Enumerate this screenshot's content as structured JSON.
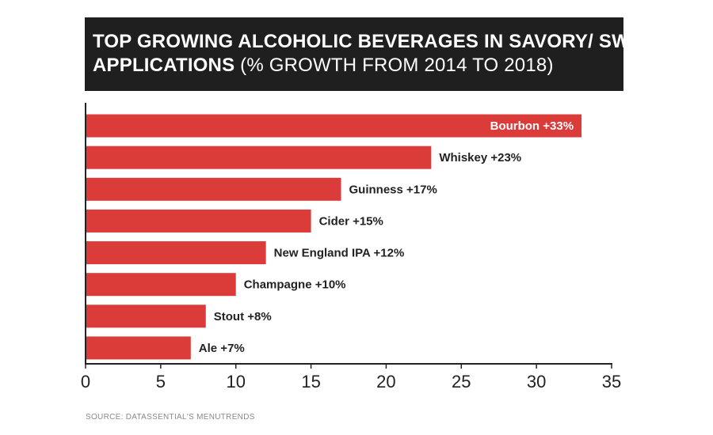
{
  "title": {
    "line1": "TOP GROWING ALCOHOLIC BEVERAGES IN SAVORY/ SWEET FOOD",
    "line2_bold": "APPLICATIONS",
    "line2_rest": " (% GROWTH FROM 2014 TO 2018)"
  },
  "source": "SOURCE: DATASSENTIAL'S MENUTRENDS",
  "colors": {
    "bar": "#db3b39",
    "title_bg": "#1f1f1f",
    "axis": "#222222",
    "label": "#222222",
    "label_on_bar": "#ffffff"
  },
  "chart_data": {
    "type": "bar",
    "orientation": "horizontal",
    "categories": [
      "Bourbon",
      "Whiskey",
      "Guinness",
      "Cider",
      "New England IPA",
      "Champagne",
      "Stout",
      "Ale"
    ],
    "values": [
      33,
      23,
      17,
      15,
      12,
      10,
      8,
      7
    ],
    "data_labels": [
      "Bourbon +33%",
      "Whiskey +23%",
      "Guinness +17%",
      "Cider +15%",
      "New England IPA +12%",
      "Champagne +10%",
      "Stout +8%",
      "Ale +7%"
    ],
    "xlim": [
      0,
      35
    ],
    "xticks": [
      0,
      5,
      10,
      15,
      20,
      25,
      30,
      35
    ],
    "grid": false
  }
}
